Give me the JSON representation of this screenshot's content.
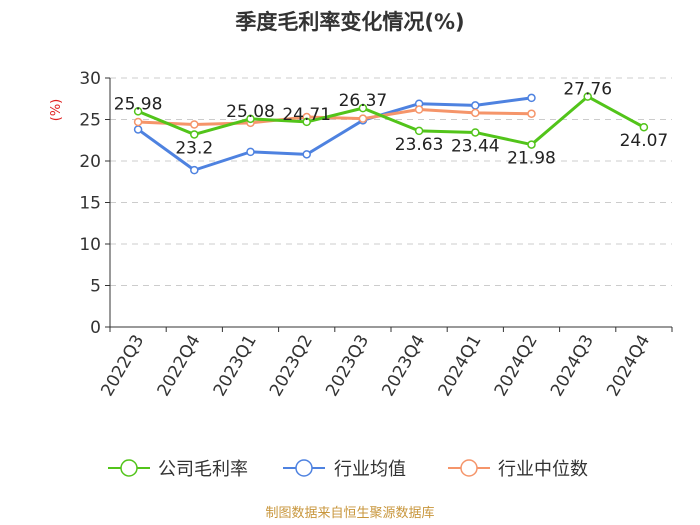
{
  "chart_data": {
    "type": "line",
    "title": "季度毛利率变化情况(%)",
    "ylabel": "(%)",
    "xlabel": "",
    "ylim": [
      0,
      30
    ],
    "yticks": [
      0,
      5,
      10,
      15,
      20,
      25,
      30
    ],
    "grid": true,
    "legend_position": "bottom",
    "categories": [
      "2022Q3",
      "2022Q4",
      "2023Q1",
      "2023Q2",
      "2023Q3",
      "2023Q4",
      "2024Q1",
      "2024Q2",
      "2024Q3",
      "2024Q4"
    ],
    "series": [
      {
        "name": "公司毛利率",
        "color": "#52c41a",
        "values": [
          25.98,
          23.2,
          25.08,
          24.71,
          26.37,
          23.63,
          23.44,
          21.98,
          27.76,
          24.07
        ],
        "labels": [
          "25.98",
          "23.2",
          "25.08",
          "24.71",
          "26.37",
          "23.63",
          "23.44",
          "21.98",
          "27.76",
          "24.07"
        ]
      },
      {
        "name": "行业均值",
        "color": "#4e82e0",
        "values": [
          23.8,
          18.9,
          21.1,
          20.8,
          24.9,
          26.9,
          26.7,
          27.6,
          null,
          null
        ]
      },
      {
        "name": "行业中位数",
        "color": "#f5956a",
        "values": [
          24.7,
          24.4,
          24.6,
          25.3,
          25.1,
          26.2,
          25.8,
          25.7,
          null,
          null
        ]
      }
    ]
  },
  "footer": {
    "source": "制图数据来自恒生聚源数据库"
  }
}
